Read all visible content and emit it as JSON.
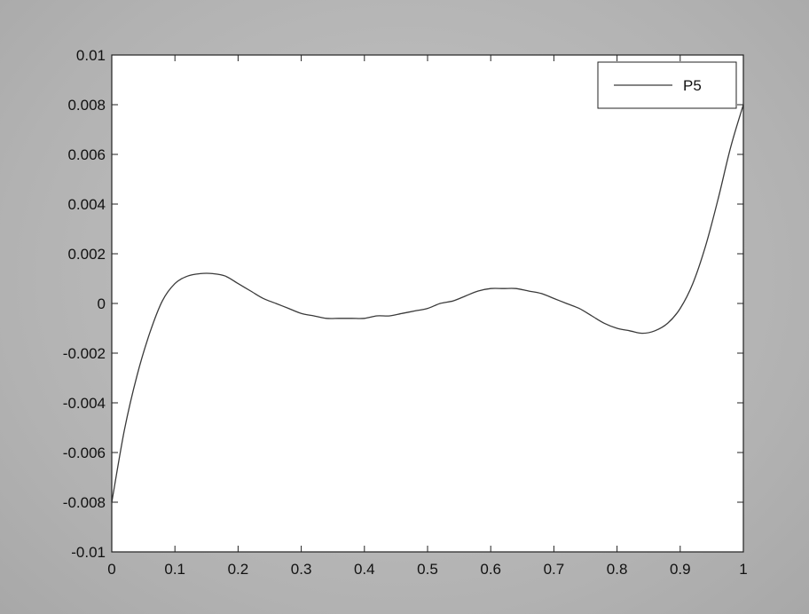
{
  "chart_data": {
    "type": "line",
    "title": "",
    "xlabel": "",
    "ylabel": "",
    "xlim": [
      0,
      1
    ],
    "ylim": [
      -0.01,
      0.01
    ],
    "xticks": [
      0,
      0.1,
      0.2,
      0.3,
      0.4,
      0.5,
      0.6,
      0.7,
      0.8,
      0.9,
      1
    ],
    "xtick_labels": [
      "0",
      "0.1",
      "0.2",
      "0.3",
      "0.4",
      "0.5",
      "0.6",
      "0.7",
      "0.8",
      "0.9",
      "1"
    ],
    "yticks": [
      0.01,
      0.008,
      0.006,
      0.004,
      0.002,
      0,
      -0.002,
      -0.004,
      -0.006,
      -0.008,
      -0.01
    ],
    "ytick_labels": [
      "0.01",
      "0.008",
      "0.006",
      "0.004",
      "0.002",
      "0",
      "-0.002",
      "-0.004",
      "-0.006",
      "-0.008",
      "-0.01"
    ],
    "grid": false,
    "legend": {
      "position": "top-right",
      "entries": [
        "P5"
      ]
    },
    "series": [
      {
        "name": "P5",
        "color": "#3a3a3a",
        "x": [
          0,
          0.02,
          0.04,
          0.06,
          0.08,
          0.1,
          0.12,
          0.14,
          0.16,
          0.18,
          0.2,
          0.22,
          0.24,
          0.26,
          0.28,
          0.3,
          0.32,
          0.34,
          0.36,
          0.38,
          0.4,
          0.42,
          0.44,
          0.46,
          0.48,
          0.5,
          0.52,
          0.54,
          0.56,
          0.58,
          0.6,
          0.62,
          0.64,
          0.66,
          0.68,
          0.7,
          0.72,
          0.74,
          0.76,
          0.78,
          0.8,
          0.82,
          0.84,
          0.86,
          0.88,
          0.9,
          0.92,
          0.94,
          0.96,
          0.98,
          1
        ],
        "y": [
          -0.008,
          -0.0051,
          -0.0029,
          -0.0012,
          0.0001,
          0.0008,
          0.0011,
          0.0012,
          0.0012,
          0.0011,
          0.0008,
          0.0005,
          0.0002,
          0.0,
          -0.0002,
          -0.0004,
          -0.0005,
          -0.0006,
          -0.0006,
          -0.0006,
          -0.0006,
          -0.0005,
          -0.0005,
          -0.0004,
          -0.0003,
          -0.0002,
          0.0,
          0.0001,
          0.0003,
          0.0005,
          0.0006,
          0.0006,
          0.0006,
          0.0005,
          0.0004,
          0.0002,
          0.0,
          -0.0002,
          -0.0005,
          -0.0008,
          -0.001,
          -0.0011,
          -0.0012,
          -0.0011,
          -0.0008,
          -0.0002,
          0.0008,
          0.0023,
          0.0042,
          0.0063,
          0.008
        ]
      }
    ]
  }
}
